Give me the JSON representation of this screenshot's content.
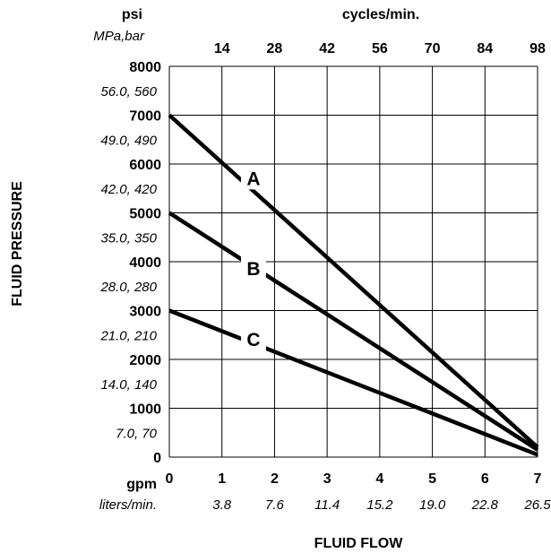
{
  "chart_data": {
    "type": "line",
    "y_unit_primary": "psi",
    "y_unit_secondary": "MPa,bar",
    "top_axis_unit": "cycles/min.",
    "x_unit_primary": "gpm",
    "x_unit_secondary": "liters/min.",
    "xlabel": "FLUID FLOW",
    "ylabel": "FLUID PRESSURE",
    "xlim": [
      0,
      7
    ],
    "ylim": [
      0,
      8000
    ],
    "grid": true,
    "x_ticks": [
      {
        "value": 0,
        "label": "0",
        "liters": ""
      },
      {
        "value": 1,
        "label": "1",
        "liters": "3.8"
      },
      {
        "value": 2,
        "label": "2",
        "liters": "7.6"
      },
      {
        "value": 3,
        "label": "3",
        "liters": "11.4"
      },
      {
        "value": 4,
        "label": "4",
        "liters": "15.2"
      },
      {
        "value": 5,
        "label": "5",
        "liters": "19.0"
      },
      {
        "value": 6,
        "label": "6",
        "liters": "22.8"
      },
      {
        "value": 7,
        "label": "7",
        "liters": "26.5"
      }
    ],
    "top_ticks": [
      {
        "value": 1,
        "label": "14"
      },
      {
        "value": 2,
        "label": "28"
      },
      {
        "value": 3,
        "label": "42"
      },
      {
        "value": 4,
        "label": "56"
      },
      {
        "value": 5,
        "label": "70"
      },
      {
        "value": 6,
        "label": "84"
      },
      {
        "value": 7,
        "label": "98"
      }
    ],
    "y_ticks": [
      {
        "value": 8000,
        "label": "8000",
        "metric": "56.0, 560"
      },
      {
        "value": 7000,
        "label": "7000",
        "metric": "49.0, 490"
      },
      {
        "value": 6000,
        "label": "6000",
        "metric": "42.0, 420"
      },
      {
        "value": 5000,
        "label": "5000",
        "metric": "35.0, 350"
      },
      {
        "value": 4000,
        "label": "4000",
        "metric": "28.0, 280"
      },
      {
        "value": 3000,
        "label": "3000",
        "metric": "21.0, 210"
      },
      {
        "value": 2000,
        "label": "2000",
        "metric": "14.0, 140"
      },
      {
        "value": 1000,
        "label": "1000",
        "metric": "7.0, 70"
      },
      {
        "value": 0,
        "label": "0",
        "metric": ""
      }
    ],
    "series": [
      {
        "name": "A",
        "x": [
          0,
          7
        ],
        "y": [
          7000,
          200
        ],
        "label_at": {
          "x": 1.6,
          "y": 5700
        }
      },
      {
        "name": "B",
        "x": [
          0,
          7
        ],
        "y": [
          5000,
          150
        ],
        "label_at": {
          "x": 1.6,
          "y": 3850
        }
      },
      {
        "name": "C",
        "x": [
          0,
          7
        ],
        "y": [
          3000,
          50
        ],
        "label_at": {
          "x": 1.6,
          "y": 2400
        }
      }
    ]
  }
}
